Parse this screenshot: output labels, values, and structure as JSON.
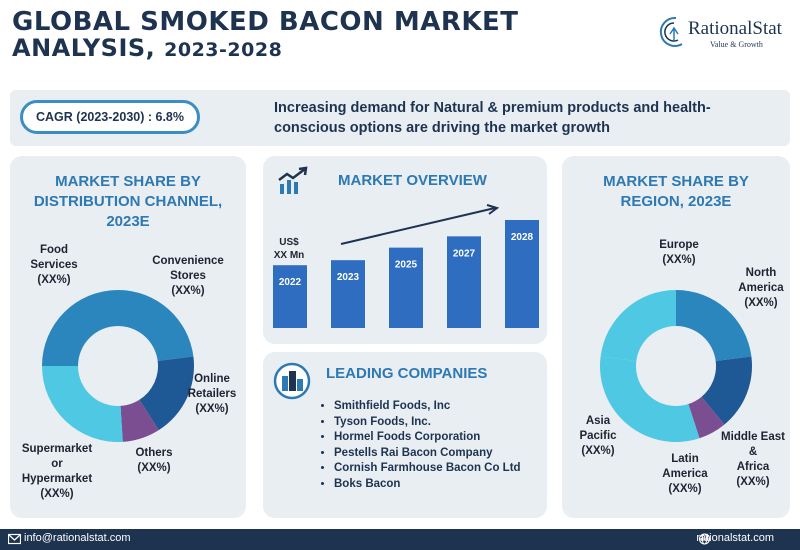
{
  "header": {
    "title_line1": "GLOBAL SMOKED BACON MARKET",
    "title_line2_main": "ANALYSIS, ",
    "title_line2_years": "2023-2028"
  },
  "logo": {
    "name": "RationalStat",
    "tagline": "Value & Growth"
  },
  "banner": {
    "cagr": "CAGR (2023-2030) : 6.8%",
    "text": "Increasing demand for Natural & premium products and health-conscious options are driving the market growth"
  },
  "distribution": {
    "title": "MARKET SHARE BY DISTRIBUTION CHANNEL, 2023E",
    "labels": {
      "food_services": [
        "Food",
        "Services",
        "(XX%)"
      ],
      "convenience": [
        "Convenience",
        "Stores",
        "(XX%)"
      ],
      "online": [
        "Online",
        "Retailers",
        "(XX%)"
      ],
      "others": [
        "Others",
        "(XX%)"
      ],
      "supermarket": [
        "Supermarket",
        "or",
        "Hypermarket",
        "(XX%)"
      ]
    }
  },
  "overview": {
    "title": "MARKET OVERVIEW",
    "unit_label": [
      "US$",
      "XX Mn"
    ]
  },
  "leading": {
    "title": "LEADING COMPANIES",
    "companies": [
      "Smithfield Foods, Inc",
      "Tyson Foods, Inc.",
      "Hormel Foods Corporation",
      "Pestells Rai Bacon Company",
      "Cornish Farmhouse Bacon Co Ltd",
      "Boks Bacon"
    ]
  },
  "region": {
    "title": "MARKET SHARE BY REGION, 2023E",
    "labels": {
      "europe": [
        "Europe",
        "(XX%)"
      ],
      "north_america": [
        "North",
        "America",
        "(XX%)"
      ],
      "mea": [
        "Middle East",
        "&",
        "Africa",
        "(XX%)"
      ],
      "latam": [
        "Latin",
        "America",
        "(XX%)"
      ],
      "apac": [
        "Asia",
        "Pacific",
        "(XX%)"
      ]
    }
  },
  "footer": {
    "email": "info@rationalstat.com",
    "website": "rationalstat.com"
  },
  "colors": {
    "navy": "#1d3350",
    "accent_blue": "#2d79b3",
    "donut_light": "#4fc8e3",
    "donut_mid": "#2a86bd",
    "donut_dark": "#1e5996",
    "donut_purple": "#7a4e90",
    "bar": "#2e6dc0"
  },
  "chart_data": [
    {
      "type": "pie",
      "title": "MARKET SHARE BY DISTRIBUTION CHANNEL, 2023E",
      "labels": [
        "Convenience Stores",
        "Online Retailers",
        "Others",
        "Supermarket or Hypermarket",
        "Food Services"
      ],
      "values": [
        23,
        18,
        8,
        26,
        25
      ],
      "value_labels": [
        "(XX%)",
        "(XX%)",
        "(XX%)",
        "(XX%)",
        "(XX%)"
      ],
      "colors": [
        "#2a86bd",
        "#1e5996",
        "#7a4e90",
        "#4fc8e3",
        "#2a86bd"
      ]
    },
    {
      "type": "bar",
      "title": "MARKET OVERVIEW",
      "categories": [
        "2022",
        "2023",
        "2025",
        "2027",
        "2028"
      ],
      "values": [
        100,
        108,
        128,
        146,
        172
      ],
      "ylabel": "US$ XX Mn",
      "trend_arrow": true
    },
    {
      "type": "pie",
      "title": "MARKET SHARE BY REGION, 2023E",
      "labels": [
        "North America",
        "Middle East & Africa",
        "Latin America",
        "Asia Pacific",
        "Europe"
      ],
      "values": [
        23,
        16,
        6,
        32,
        23
      ],
      "value_labels": [
        "(XX%)",
        "(XX%)",
        "(XX%)",
        "(XX%)",
        "(XX%)"
      ],
      "colors": [
        "#2a86bd",
        "#1e5996",
        "#7a4e90",
        "#4fc8e3",
        "#4fc8e3"
      ]
    }
  ]
}
